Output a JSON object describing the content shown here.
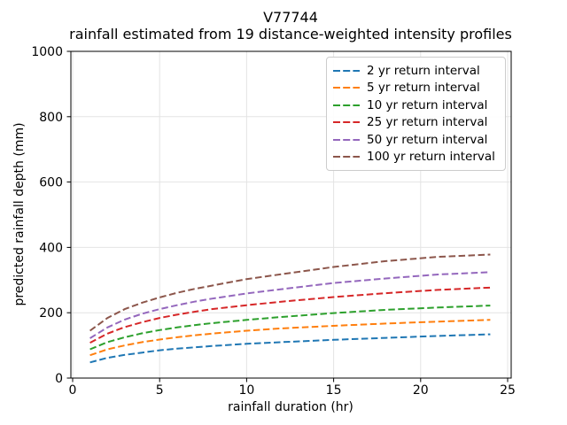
{
  "figure": {
    "title": "V77744",
    "subtitle": "rainfall estimated from 19 distance-weighted intensity profiles"
  },
  "chart_data": {
    "type": "line",
    "title": "V77744",
    "subtitle": "rainfall estimated from 19 distance-weighted intensity profiles",
    "xlabel": "rainfall duration (hr)",
    "ylabel": "predicted rainfall depth (mm)",
    "xlim": [
      0,
      25
    ],
    "ylim": [
      0,
      1000
    ],
    "xticks": [
      0,
      5,
      10,
      15,
      20,
      25
    ],
    "yticks": [
      0,
      200,
      400,
      600,
      800,
      1000
    ],
    "grid": true,
    "line_style": "dashed",
    "legend_position": "upper right",
    "x": [
      1,
      2,
      3,
      4,
      5,
      6,
      7,
      8,
      10,
      12,
      15,
      18,
      21,
      24
    ],
    "series": [
      {
        "name": "2 yr return interval",
        "color": "#1f77b4",
        "values": [
          48,
          62,
          71,
          78,
          85,
          90,
          94,
          98,
          105,
          110,
          117,
          123,
          129,
          134
        ]
      },
      {
        "name": "5 yr return interval",
        "color": "#ff7f0e",
        "values": [
          70,
          88,
          100,
          110,
          118,
          125,
          131,
          136,
          145,
          152,
          160,
          167,
          173,
          178
        ]
      },
      {
        "name": "10 yr return interval",
        "color": "#2ca02c",
        "values": [
          88,
          110,
          125,
          137,
          147,
          155,
          162,
          168,
          178,
          187,
          199,
          209,
          216,
          222
        ]
      },
      {
        "name": "25 yr return interval",
        "color": "#d62728",
        "values": [
          108,
          136,
          156,
          171,
          184,
          194,
          203,
          211,
          223,
          234,
          248,
          260,
          270,
          277
        ]
      },
      {
        "name": "50 yr return interval",
        "color": "#9467bd",
        "values": [
          122,
          155,
          179,
          197,
          211,
          223,
          234,
          243,
          259,
          272,
          291,
          305,
          317,
          324
        ]
      },
      {
        "name": "100 yr return interval",
        "color": "#8c564b",
        "values": [
          145,
          184,
          211,
          231,
          247,
          261,
          273,
          283,
          303,
          318,
          340,
          358,
          371,
          378
        ]
      }
    ]
  },
  "colors": {
    "grid": "#e4e4e4",
    "spine": "#000000",
    "tick_text": "#000000",
    "legend_border": "#cccccc",
    "background": "#ffffff"
  }
}
